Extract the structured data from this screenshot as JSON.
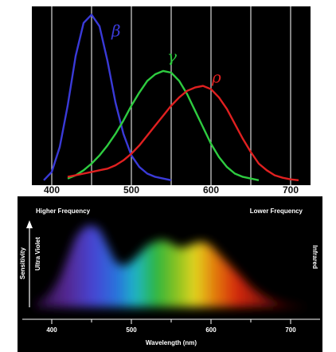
{
  "chart_data": [
    {
      "type": "line",
      "x": [
        390,
        400,
        410,
        420,
        430,
        440,
        450,
        460,
        470,
        480,
        490,
        500,
        510,
        520,
        530,
        540,
        550,
        560,
        570,
        580,
        590,
        600,
        610,
        620,
        630,
        640,
        650,
        660,
        670,
        680,
        690,
        700,
        710,
        720
      ],
      "series": [
        {
          "name": "β",
          "color": "#3a3ad8",
          "values": [
            0,
            0.05,
            0.2,
            0.45,
            0.75,
            0.95,
            1.0,
            0.93,
            0.72,
            0.47,
            0.28,
            0.15,
            0.08,
            0.04,
            0.02,
            0.01,
            0,
            null,
            null,
            null,
            null,
            null,
            null,
            null,
            null,
            null,
            null,
            null,
            null,
            null,
            null,
            null,
            null,
            null
          ]
        },
        {
          "name": "γ",
          "color": "#2ecc40",
          "values": [
            null,
            null,
            null,
            0.01,
            0.03,
            0.06,
            0.1,
            0.15,
            0.21,
            0.28,
            0.36,
            0.45,
            0.53,
            0.6,
            0.64,
            0.66,
            0.65,
            0.6,
            0.52,
            0.42,
            0.32,
            0.22,
            0.14,
            0.08,
            0.04,
            0.02,
            0.01,
            0,
            null,
            null,
            null,
            null,
            null,
            null
          ]
        },
        {
          "name": "ρ",
          "color": "#e02020",
          "values": [
            null,
            null,
            null,
            0.02,
            0.03,
            0.04,
            0.05,
            0.06,
            0.07,
            0.09,
            0.12,
            0.16,
            0.21,
            0.27,
            0.33,
            0.39,
            0.45,
            0.5,
            0.54,
            0.56,
            0.57,
            0.55,
            0.5,
            0.43,
            0.34,
            0.25,
            0.17,
            0.1,
            0.06,
            0.03,
            0.015,
            0.005,
            0,
            null
          ]
        }
      ],
      "xlim": [
        375,
        725
      ],
      "ylim": [
        -0.03,
        1.05
      ],
      "xticks": [
        400,
        500,
        600,
        700
      ],
      "xgrid": [
        400,
        450,
        500,
        550,
        600,
        650,
        700
      ]
    },
    {
      "type": "area",
      "x": [
        380,
        390,
        400,
        410,
        420,
        430,
        440,
        450,
        460,
        470,
        480,
        490,
        500,
        510,
        520,
        530,
        540,
        550,
        560,
        570,
        580,
        590,
        600,
        610,
        620,
        630,
        640,
        650,
        660,
        670,
        680,
        690,
        700,
        710,
        720
      ],
      "values": [
        0.05,
        0.1,
        0.2,
        0.35,
        0.6,
        0.85,
        0.97,
        1.0,
        0.95,
        0.75,
        0.55,
        0.5,
        0.55,
        0.65,
        0.75,
        0.8,
        0.82,
        0.78,
        0.72,
        0.74,
        0.78,
        0.8,
        0.75,
        0.65,
        0.55,
        0.45,
        0.35,
        0.25,
        0.18,
        0.12,
        0.08,
        0.05,
        0.03,
        0.02,
        0.01
      ],
      "xlim": [
        363,
        737
      ],
      "ylim": [
        0,
        1
      ],
      "xticks": [
        400,
        500,
        600,
        700
      ],
      "minor_xticks": [
        450,
        550,
        650
      ],
      "xlabel": "Wavelength (nm)",
      "ylabel": "Sensitivity",
      "annotations": [
        "Higher Frequency",
        "Lower Frequency",
        "Ultra Violet",
        "Infrared"
      ]
    }
  ]
}
